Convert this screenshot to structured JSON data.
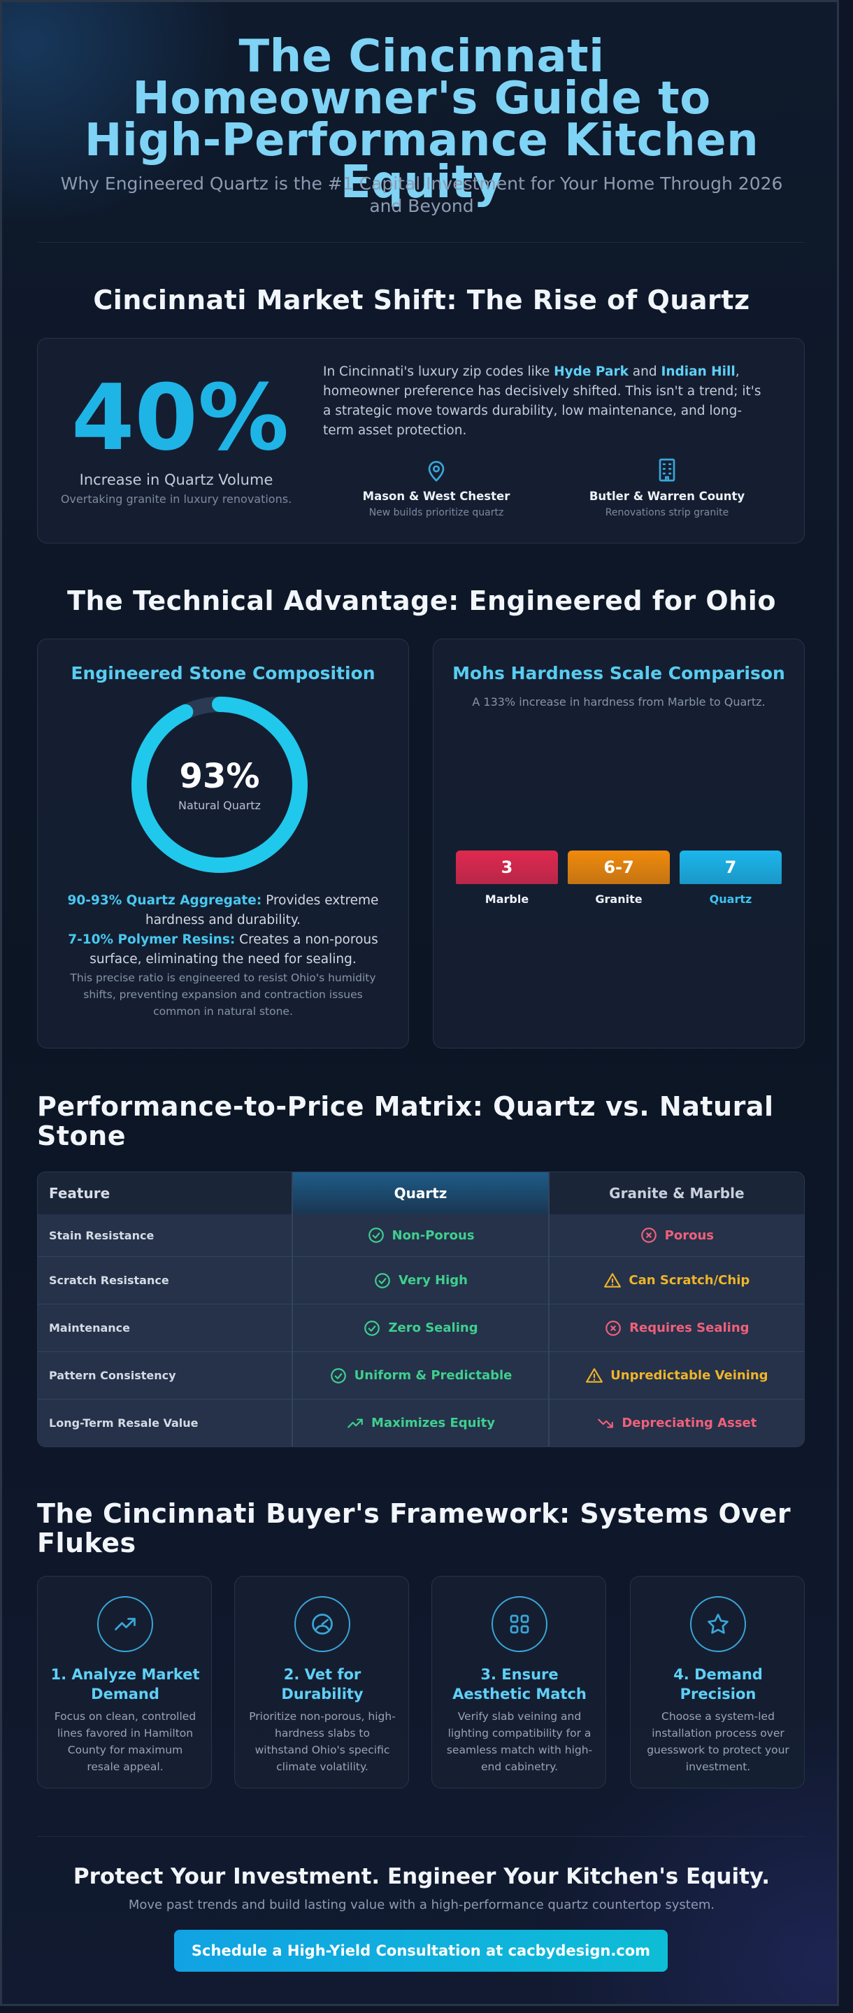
{
  "header": {
    "title": "The Cincinnati Homeowner's Guide to High-Performance Kitchen Equity",
    "subtitle": "Why Engineered Quartz is the #1 Capital Investment for Your Home Through 2026 and Beyond"
  },
  "market": {
    "title": "Cincinnati Market Shift: The Rise of Quartz",
    "stat_value": "40%",
    "stat_label": "Increase in Quartz Volume",
    "stat_sub": "Overtaking granite in luxury renovations.",
    "text_1": "In Cincinnati's luxury zip codes like ",
    "zip_1": "Hyde Park",
    "text_2": " and ",
    "zip_2": "Indian Hill",
    "text_3": ", homeowner preference has decisively shifted. This isn't a trend; it's a strategic move towards durability, low maintenance, and long-term asset protection.",
    "locations": [
      {
        "title": "Mason & West Chester",
        "sub": "New builds prioritize quartz",
        "icon": "map-pin-icon"
      },
      {
        "title": "Butler & Warren County",
        "sub": "Renovations strip granite",
        "icon": "building-icon"
      }
    ]
  },
  "technical": {
    "title": "The Technical Advantage: Engineered for Ohio",
    "composition": {
      "title": "Engineered Stone Composition",
      "value": "93%",
      "value_label": "Natural Quartz",
      "percent": 93,
      "line1_bold": "90-93% Quartz Aggregate:",
      "line1_text": " Provides extreme hardness and durability.",
      "line2_bold": "7-10% Polymer Resins:",
      "line2_text": " Creates a non-porous surface, eliminating the need for sealing.",
      "note": "This precise ratio is engineered to resist Ohio's humidity shifts, preventing expansion and contraction issues common in natural stone."
    },
    "mohs": {
      "title": "Mohs Hardness Scale Comparison",
      "subtitle": "A 133% increase in hardness from Marble to Quartz.",
      "bars": [
        {
          "value": "3",
          "label": "Marble",
          "color": "#e0294f"
        },
        {
          "value": "6-7",
          "label": "Granite",
          "color": "#f08a0c"
        },
        {
          "value": "7",
          "label": "Quartz",
          "color": "#1cb6ec"
        }
      ]
    }
  },
  "chart_data": {
    "type": "bar",
    "title": "Mohs Hardness Scale Comparison",
    "categories": [
      "Marble",
      "Granite",
      "Quartz"
    ],
    "values": [
      3,
      6.5,
      7
    ],
    "value_labels": [
      "3",
      "6-7",
      "7"
    ],
    "xlabel": "",
    "ylabel": ""
  },
  "matrix": {
    "title": "Performance-to-Price Matrix: Quartz vs. Natural Stone",
    "headers": [
      "Feature",
      "Quartz",
      "Granite & Marble"
    ],
    "rows": [
      {
        "feature": "Stain Resistance",
        "quartz": "Non-Porous",
        "q_icon": "check",
        "stone": "Porous",
        "s_icon": "x",
        "s_tone": "bad"
      },
      {
        "feature": "Scratch Resistance",
        "quartz": "Very High",
        "q_icon": "check",
        "stone": "Can Scratch/Chip",
        "s_icon": "warn",
        "s_tone": "warn"
      },
      {
        "feature": "Maintenance",
        "quartz": "Zero Sealing",
        "q_icon": "check",
        "stone": "Requires Sealing",
        "s_icon": "x",
        "s_tone": "bad"
      },
      {
        "feature": "Pattern Consistency",
        "quartz": "Uniform & Predictable",
        "q_icon": "check",
        "stone": "Unpredictable Veining",
        "s_icon": "warn",
        "s_tone": "warn"
      },
      {
        "feature": "Long-Term Resale Value",
        "quartz": "Maximizes Equity",
        "q_icon": "trend-up",
        "stone": "Depreciating Asset",
        "s_icon": "trend-down",
        "s_tone": "bad"
      }
    ]
  },
  "framework": {
    "title": "The Cincinnati Buyer's Framework: Systems Over Flukes",
    "steps": [
      {
        "title": "1. Analyze Market Demand",
        "desc": "Focus on clean, controlled lines favored in Hamilton County for maximum resale appeal.",
        "icon": "trend-up-icon"
      },
      {
        "title": "2. Vet for Durability",
        "desc": "Prioritize non-porous, high-hardness slabs to withstand Ohio's specific climate volatility.",
        "icon": "gauge-icon"
      },
      {
        "title": "3. Ensure Aesthetic Match",
        "desc": "Verify slab veining and lighting compatibility for a seamless match with high-end cabinetry.",
        "icon": "grid-icon"
      },
      {
        "title": "4. Demand Precision",
        "desc": "Choose a system-led installation process over guesswork to protect your investment.",
        "icon": "star-icon"
      }
    ]
  },
  "cta": {
    "title": "Protect Your Investment. Engineer Your Kitchen's Equity.",
    "subtitle": "Move past trends and build lasting value with a high-performance quartz countertop system.",
    "button": "Schedule a High-Yield Consultation at cacbydesign.com"
  }
}
